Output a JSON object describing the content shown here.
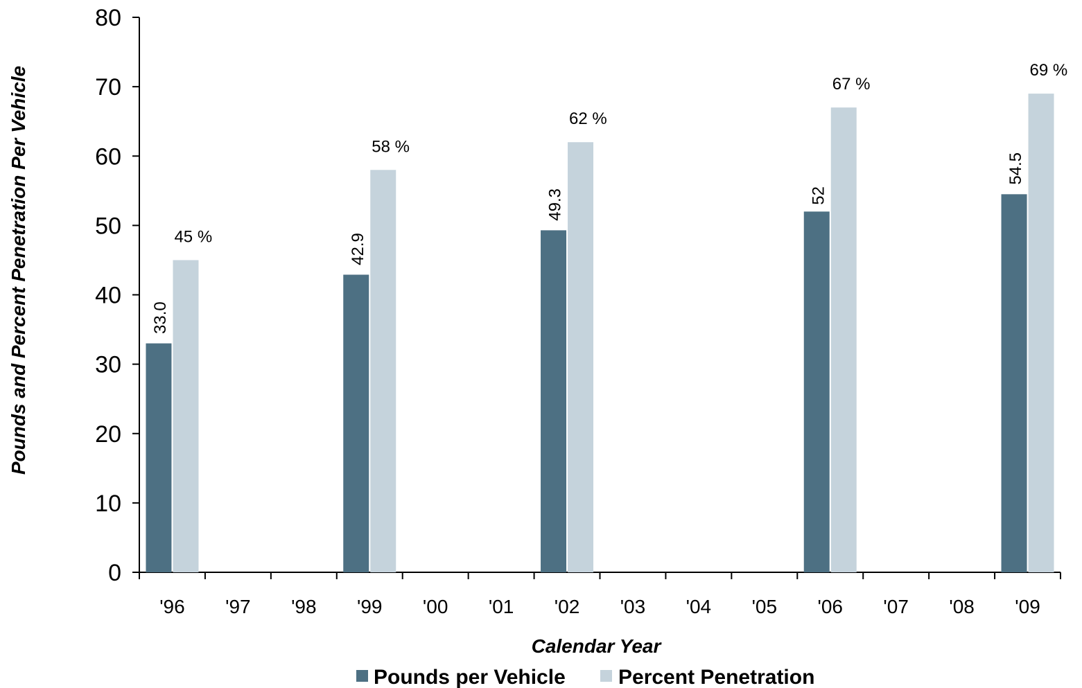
{
  "chart_data": {
    "type": "bar",
    "categories": [
      "'96",
      "'97",
      "'98",
      "'99",
      "'00",
      "'01",
      "'02",
      "'03",
      "'04",
      "'05",
      "'06",
      "'07",
      "'08",
      "'09"
    ],
    "series": [
      {
        "name": "Pounds per Vehicle",
        "color": "#4d7083",
        "values": [
          33.0,
          null,
          null,
          42.9,
          null,
          null,
          49.3,
          null,
          null,
          null,
          52,
          null,
          null,
          54.5
        ],
        "labels": [
          "33.0",
          "",
          "",
          "42.9",
          "",
          "",
          "49.3",
          "",
          "",
          "",
          "52",
          "",
          "",
          "54.5"
        ]
      },
      {
        "name": "Percent Penetration",
        "color": "#c5d3dc",
        "values": [
          45,
          null,
          null,
          58,
          null,
          null,
          62,
          null,
          null,
          null,
          67,
          null,
          null,
          69
        ],
        "labels": [
          "45 %",
          "",
          "",
          "58 %",
          "",
          "",
          "62 %",
          "",
          "",
          "",
          "67 %",
          "",
          "",
          "69 %"
        ]
      }
    ],
    "title": "",
    "xlabel": "Calendar Year",
    "ylabel": "Pounds and Percent Penetration Per Vehicle",
    "ylim": [
      0,
      80
    ],
    "yticks": [
      "0",
      "10",
      "20",
      "30",
      "40",
      "50",
      "60",
      "70",
      "80"
    ],
    "grid": false,
    "legend_position": "bottom"
  }
}
